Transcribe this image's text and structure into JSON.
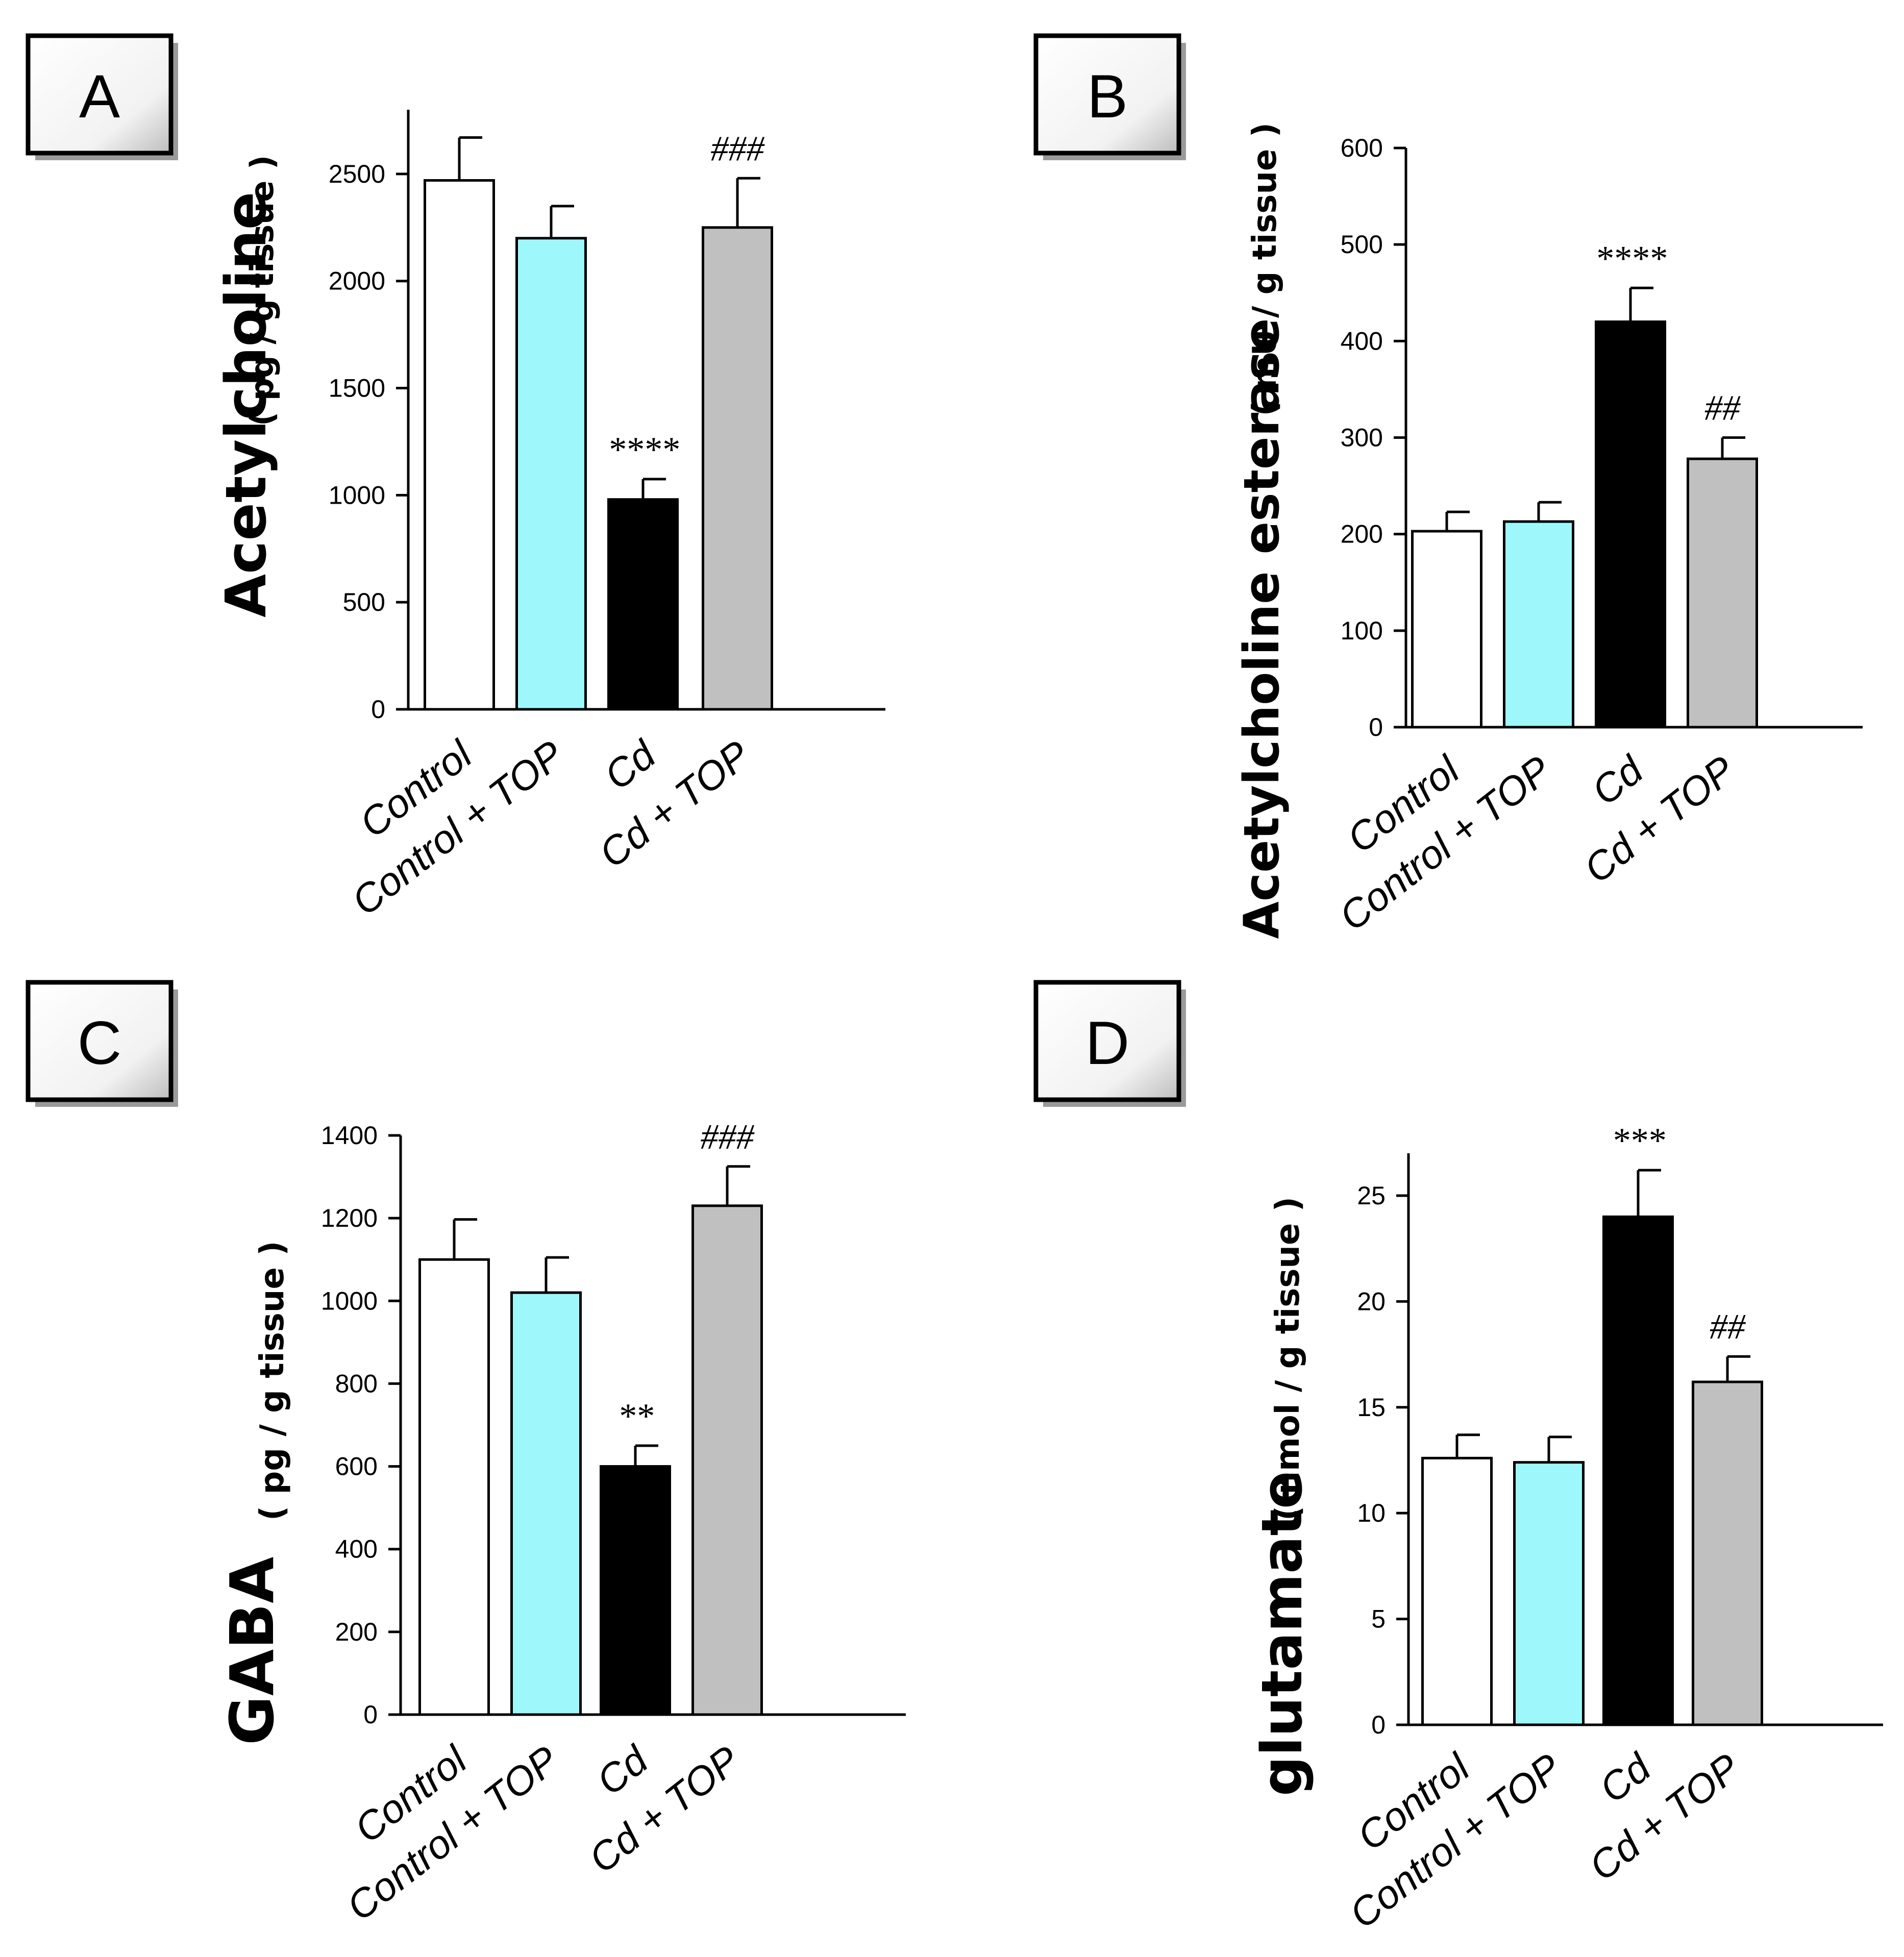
{
  "chart_data": [
    {
      "panel": "A",
      "type": "bar",
      "ylabel_main": "Acetylcholine",
      "ylabel_unit": "( pg / g tissue )",
      "categories": [
        "Control",
        "Control + TOP",
        "Cd",
        "Cd + TOP"
      ],
      "values": [
        2470,
        2200,
        980,
        2250
      ],
      "errors": [
        200,
        150,
        95,
        230
      ],
      "annotations": [
        "",
        "",
        "****",
        "###"
      ],
      "colors": [
        "#ffffff",
        "#9ef8fb",
        "#000000",
        "#c0c0c0"
      ],
      "ylim": [
        0,
        2800
      ],
      "yticks": [
        0,
        500,
        1000,
        1500,
        2000,
        2500
      ]
    },
    {
      "panel": "B",
      "type": "bar",
      "ylabel_main": "Acetylcholine esterase",
      "ylabel_unit": "( mU / g tissue )",
      "categories": [
        "Control",
        "Control + TOP",
        "Cd",
        "Cd + TOP"
      ],
      "values": [
        203,
        213,
        420,
        278
      ],
      "errors": [
        20,
        20,
        35,
        22
      ],
      "annotations": [
        "",
        "",
        "****",
        "##"
      ],
      "colors": [
        "#ffffff",
        "#9ef8fb",
        "#000000",
        "#c0c0c0"
      ],
      "ylim": [
        0,
        600
      ],
      "yticks": [
        0,
        100,
        200,
        300,
        400,
        500,
        600
      ]
    },
    {
      "panel": "C",
      "type": "bar",
      "ylabel_main": "GABA",
      "ylabel_unit": "( pg / g tissue )",
      "categories": [
        "Control",
        "Control + TOP",
        "Cd",
        "Cd + TOP"
      ],
      "values": [
        1100,
        1020,
        600,
        1230
      ],
      "errors": [
        97,
        85,
        50,
        95
      ],
      "annotations": [
        "",
        "",
        "**",
        "###"
      ],
      "colors": [
        "#ffffff",
        "#9ef8fb",
        "#000000",
        "#c0c0c0"
      ],
      "ylim": [
        0,
        1400
      ],
      "yticks": [
        0,
        200,
        400,
        600,
        800,
        1000,
        1200,
        1400
      ]
    },
    {
      "panel": "D",
      "type": "bar",
      "ylabel_main": "glutamate",
      "ylabel_unit": "( nmol / g tissue )",
      "categories": [
        "Control",
        "Control + TOP",
        "Cd",
        "Cd + TOP"
      ],
      "values": [
        12.6,
        12.4,
        24.0,
        16.2
      ],
      "errors": [
        1.1,
        1.2,
        2.2,
        1.2
      ],
      "annotations": [
        "",
        "",
        "***",
        "##"
      ],
      "colors": [
        "#ffffff",
        "#9ef8fb",
        "#000000",
        "#c0c0c0"
      ],
      "ylim": [
        0,
        27
      ],
      "yticks": [
        0,
        5,
        10,
        15,
        20,
        25
      ]
    }
  ]
}
